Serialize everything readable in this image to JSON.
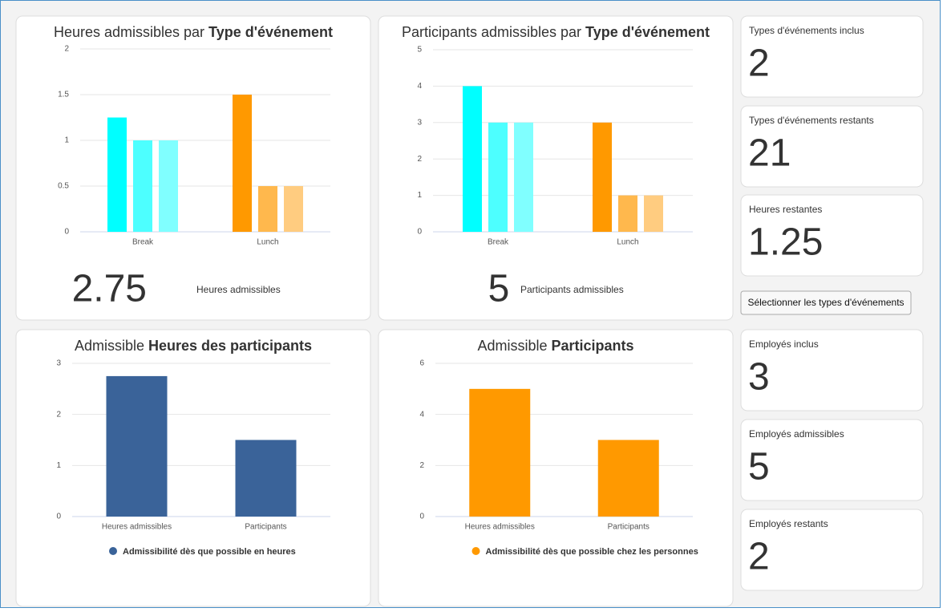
{
  "chart_data": [
    {
      "type": "bar",
      "title": "Heures admissibles par",
      "title_bold": "Type d'événement",
      "categories": [
        "Break",
        "Lunch"
      ],
      "series": [
        {
          "colors": [
            "#00ffff",
            "#ff9900"
          ],
          "values": [
            1.25,
            1.5
          ]
        },
        {
          "colors": [
            "#4dffff",
            "#ffb84d"
          ],
          "values": [
            1,
            0.5
          ]
        },
        {
          "colors": [
            "#80ffff",
            "#ffcc80"
          ],
          "values": [
            1,
            0.5
          ]
        }
      ],
      "ylim": [
        0,
        2
      ],
      "yticks": [
        0,
        0.5,
        1,
        1.5,
        2
      ],
      "grid": true,
      "total": 2.75,
      "total_label": "Heures admissibles"
    },
    {
      "type": "bar",
      "title": "Participants admissibles par",
      "title_bold": "Type d'événement",
      "categories": [
        "Break",
        "Lunch"
      ],
      "series": [
        {
          "colors": [
            "#00ffff",
            "#ff9900"
          ],
          "values": [
            4,
            3
          ]
        },
        {
          "colors": [
            "#4dffff",
            "#ffb84d"
          ],
          "values": [
            3,
            1
          ]
        },
        {
          "colors": [
            "#80ffff",
            "#ffcc80"
          ],
          "values": [
            3,
            1
          ]
        }
      ],
      "ylim": [
        0,
        5
      ],
      "yticks": [
        0,
        1,
        2,
        3,
        4,
        5
      ],
      "grid": true,
      "total": 5,
      "total_label": "Participants admissibles"
    },
    {
      "type": "bar",
      "title": "Admissible",
      "title_bold": "Heures des participants",
      "categories": [
        "Heures admissibles",
        "Participants"
      ],
      "series": [
        {
          "name": "Admissibilité dès que possible en heures",
          "color": "#3a6399",
          "values": [
            2.75,
            1.5
          ]
        }
      ],
      "ylim": [
        0,
        3
      ],
      "yticks": [
        0,
        1,
        2,
        3
      ],
      "grid": true,
      "legend": "bottom"
    },
    {
      "type": "bar",
      "title": "Admissible",
      "title_bold": "Participants",
      "categories": [
        "Heures admissibles",
        "Participants"
      ],
      "series": [
        {
          "name": "Admissibilité dès que possible chez les personnes",
          "color": "#ff9900",
          "values": [
            5,
            3
          ]
        }
      ],
      "ylim": [
        0,
        6
      ],
      "yticks": [
        0,
        2,
        4,
        6
      ],
      "grid": true,
      "legend": "bottom"
    }
  ],
  "cards": [
    {
      "label": "Types d'événements inclus",
      "value": 2
    },
    {
      "label": "Types d'événements restants",
      "value": 21
    },
    {
      "label": "Heures restantes",
      "value": 1.25
    },
    {
      "label": "Employés inclus",
      "value": 3
    },
    {
      "label": "Employés admissibles",
      "value": 5
    },
    {
      "label": "Employés restants",
      "value": 2
    }
  ],
  "button": "Sélectionner les types d'événements"
}
